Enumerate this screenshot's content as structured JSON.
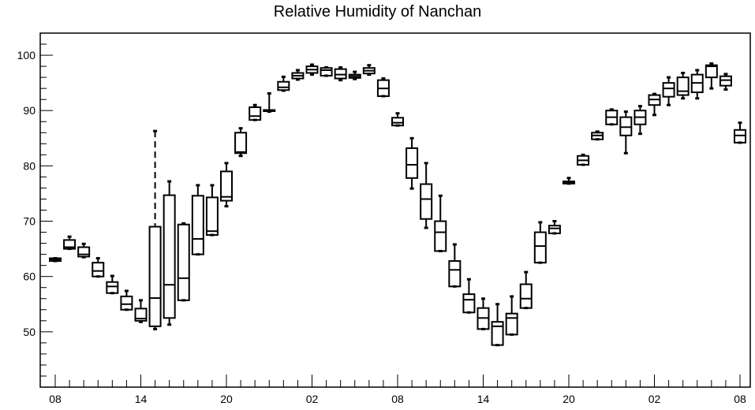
{
  "chart_data": {
    "type": "boxplot",
    "title": "Relative Humidity of Nanchan",
    "xlabel": "",
    "ylabel": "",
    "ylim": [
      40,
      104
    ],
    "y_ticks": [
      50,
      60,
      70,
      80,
      90,
      100
    ],
    "x_tick_labels": [
      "08",
      "14",
      "20",
      "02",
      "08",
      "14",
      "20",
      "02",
      "08"
    ],
    "x_range": [
      0,
      48
    ],
    "grid": false,
    "legend": "none",
    "box_color": "#000000",
    "boxes": [
      {
        "x": 0.0,
        "min": 62.8,
        "q1": 62.8,
        "median": 63.1,
        "q3": 63.3,
        "max": 63.3
      },
      {
        "x": 1.0,
        "min": 65.0,
        "q1": 65.0,
        "median": 65.3,
        "q3": 66.6,
        "max": 67.2
      },
      {
        "x": 2.0,
        "min": 63.5,
        "q1": 63.6,
        "median": 64.0,
        "q3": 65.3,
        "max": 65.9
      },
      {
        "x": 3.0,
        "min": 60.0,
        "q1": 60.0,
        "median": 61.0,
        "q3": 62.5,
        "max": 63.3
      },
      {
        "x": 4.0,
        "min": 57.0,
        "q1": 57.0,
        "median": 58.2,
        "q3": 59.0,
        "max": 60.1
      },
      {
        "x": 5.0,
        "min": 54.0,
        "q1": 54.0,
        "median": 55.0,
        "q3": 56.4,
        "max": 57.4
      },
      {
        "x": 6.0,
        "min": 51.8,
        "q1": 52.0,
        "median": 52.4,
        "q3": 54.2,
        "max": 55.7
      },
      {
        "x": 7.0,
        "min": 50.5,
        "q1": 51.0,
        "median": 56.1,
        "q3": 69.0,
        "max": 86.3
      },
      {
        "x": 8.0,
        "min": 51.3,
        "q1": 52.5,
        "median": 58.5,
        "q3": 74.7,
        "max": 77.2
      },
      {
        "x": 9.0,
        "min": 55.7,
        "q1": 55.7,
        "median": 59.7,
        "q3": 69.4,
        "max": 69.6
      },
      {
        "x": 10.0,
        "min": 64.0,
        "q1": 64.0,
        "median": 66.8,
        "q3": 74.6,
        "max": 76.5
      },
      {
        "x": 11.0,
        "min": 67.5,
        "q1": 67.5,
        "median": 68.2,
        "q3": 74.3,
        "max": 76.5
      },
      {
        "x": 12.0,
        "min": 72.7,
        "q1": 73.7,
        "median": 74.4,
        "q3": 79.0,
        "max": 80.5
      },
      {
        "x": 13.0,
        "min": 81.8,
        "q1": 82.3,
        "median": 82.5,
        "q3": 86.0,
        "max": 86.8
      },
      {
        "x": 14.0,
        "min": 88.3,
        "q1": 88.3,
        "median": 89.0,
        "q3": 90.6,
        "max": 91.0
      },
      {
        "x": 15.0,
        "min": 89.8,
        "q1": 89.9,
        "median": 90.0,
        "q3": 90.1,
        "max": 93.1
      },
      {
        "x": 16.0,
        "min": 93.6,
        "q1": 93.7,
        "median": 94.2,
        "q3": 95.2,
        "max": 96.1
      },
      {
        "x": 17.0,
        "min": 95.6,
        "q1": 95.8,
        "median": 96.3,
        "q3": 96.8,
        "max": 97.3
      },
      {
        "x": 18.0,
        "min": 96.5,
        "q1": 96.8,
        "median": 97.4,
        "q3": 98.0,
        "max": 98.3
      },
      {
        "x": 19.0,
        "min": 96.3,
        "q1": 96.3,
        "median": 97.3,
        "q3": 97.7,
        "max": 97.8
      },
      {
        "x": 20.0,
        "min": 95.5,
        "q1": 95.8,
        "median": 96.5,
        "q3": 97.5,
        "max": 97.8
      },
      {
        "x": 21.0,
        "min": 95.7,
        "q1": 95.9,
        "median": 96.2,
        "q3": 96.5,
        "max": 97.0
      },
      {
        "x": 22.0,
        "min": 96.5,
        "q1": 96.7,
        "median": 97.2,
        "q3": 97.7,
        "max": 98.2
      },
      {
        "x": 23.0,
        "min": 92.6,
        "q1": 92.6,
        "median": 94.0,
        "q3": 95.5,
        "max": 95.8
      },
      {
        "x": 24.0,
        "min": 87.3,
        "q1": 87.3,
        "median": 87.8,
        "q3": 88.7,
        "max": 89.5
      },
      {
        "x": 25.0,
        "min": 75.9,
        "q1": 77.8,
        "median": 80.2,
        "q3": 83.2,
        "max": 85.0
      },
      {
        "x": 26.0,
        "min": 68.8,
        "q1": 70.4,
        "median": 74.0,
        "q3": 76.7,
        "max": 80.5
      },
      {
        "x": 27.0,
        "min": 64.6,
        "q1": 64.6,
        "median": 68.0,
        "q3": 70.0,
        "max": 74.6
      },
      {
        "x": 28.0,
        "min": 58.2,
        "q1": 58.2,
        "median": 61.2,
        "q3": 62.8,
        "max": 65.8
      },
      {
        "x": 29.0,
        "min": 53.5,
        "q1": 53.5,
        "median": 55.8,
        "q3": 56.8,
        "max": 59.5
      },
      {
        "x": 30.0,
        "min": 50.5,
        "q1": 50.5,
        "median": 52.5,
        "q3": 54.3,
        "max": 56.0
      },
      {
        "x": 31.0,
        "min": 47.6,
        "q1": 47.6,
        "median": 51.0,
        "q3": 51.8,
        "max": 55.0
      },
      {
        "x": 32.0,
        "min": 49.5,
        "q1": 49.5,
        "median": 52.5,
        "q3": 53.3,
        "max": 56.4
      },
      {
        "x": 33.0,
        "min": 54.3,
        "q1": 54.3,
        "median": 56.0,
        "q3": 58.6,
        "max": 60.8
      },
      {
        "x": 34.0,
        "min": 62.5,
        "q1": 62.5,
        "median": 65.5,
        "q3": 68.0,
        "max": 69.8
      },
      {
        "x": 35.0,
        "min": 67.8,
        "q1": 67.8,
        "median": 68.7,
        "q3": 69.2,
        "max": 70.0
      },
      {
        "x": 36.0,
        "min": 76.8,
        "q1": 76.8,
        "median": 77.0,
        "q3": 77.2,
        "max": 77.8
      },
      {
        "x": 37.0,
        "min": 80.2,
        "q1": 80.2,
        "median": 81.0,
        "q3": 81.8,
        "max": 82.0
      },
      {
        "x": 38.0,
        "min": 84.8,
        "q1": 84.8,
        "median": 85.5,
        "q3": 86.0,
        "max": 86.2
      },
      {
        "x": 39.0,
        "min": 87.5,
        "q1": 87.5,
        "median": 88.8,
        "q3": 90.0,
        "max": 90.2
      },
      {
        "x": 40.0,
        "min": 82.3,
        "q1": 85.5,
        "median": 87.0,
        "q3": 88.8,
        "max": 89.8
      },
      {
        "x": 41.0,
        "min": 85.8,
        "q1": 87.5,
        "median": 88.8,
        "q3": 90.0,
        "max": 90.8
      },
      {
        "x": 42.0,
        "min": 89.2,
        "q1": 91.0,
        "median": 92.0,
        "q3": 92.8,
        "max": 93.0
      },
      {
        "x": 43.0,
        "min": 91.0,
        "q1": 92.5,
        "median": 94.0,
        "q3": 95.0,
        "max": 96.0
      },
      {
        "x": 44.0,
        "min": 92.2,
        "q1": 92.8,
        "median": 93.5,
        "q3": 96.0,
        "max": 96.8
      },
      {
        "x": 45.0,
        "min": 92.2,
        "q1": 93.3,
        "median": 95.0,
        "q3": 96.5,
        "max": 97.3
      },
      {
        "x": 46.0,
        "min": 94.0,
        "q1": 96.0,
        "median": 98.0,
        "q3": 98.2,
        "max": 98.5
      },
      {
        "x": 47.0,
        "min": 93.8,
        "q1": 94.5,
        "median": 95.5,
        "q3": 96.2,
        "max": 96.6
      },
      {
        "x": 48.0,
        "min": 84.2,
        "q1": 84.2,
        "median": 85.5,
        "q3": 86.5,
        "max": 87.8
      }
    ]
  }
}
